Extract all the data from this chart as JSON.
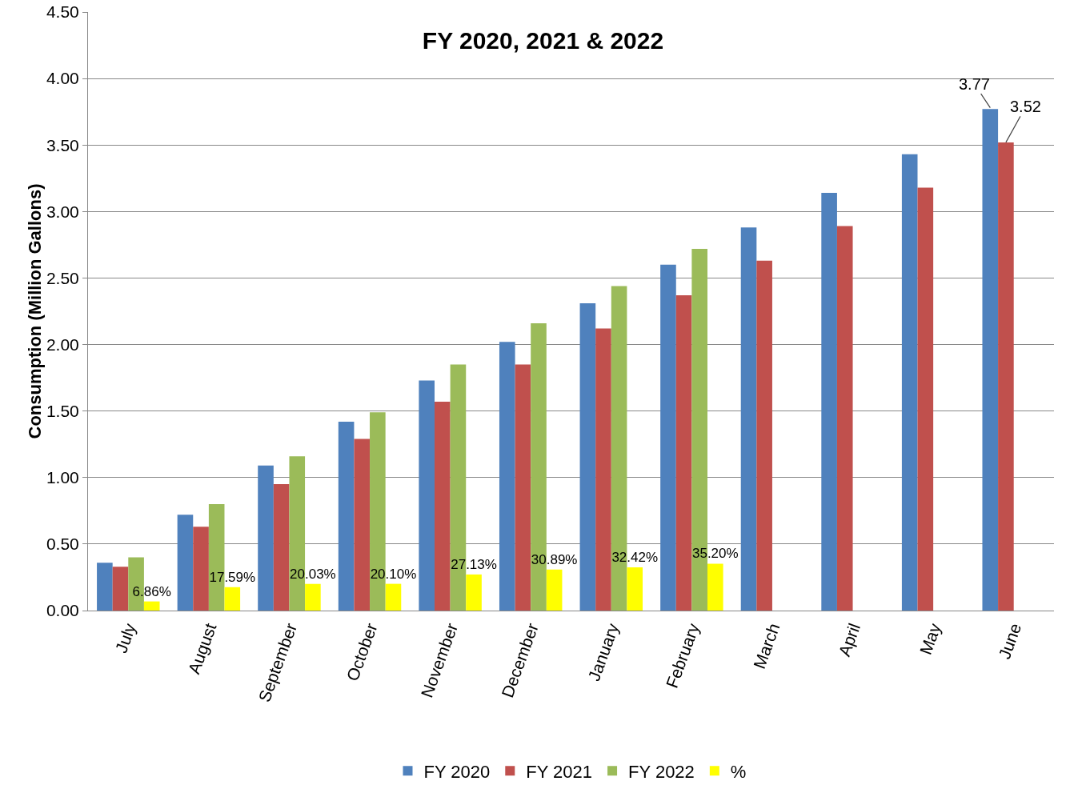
{
  "chart_data": {
    "type": "bar",
    "title": "FY 2020, 2021 & 2022",
    "ylabel": "Consumption (Million Gallons)",
    "categories": [
      "July",
      "August",
      "September",
      "October",
      "November",
      "December",
      "January",
      "February",
      "March",
      "April",
      "May",
      "June"
    ],
    "series": [
      {
        "name": "FY 2020",
        "color": "#4f81bd",
        "values": [
          0.36,
          0.72,
          1.09,
          1.42,
          1.73,
          2.02,
          2.31,
          2.6,
          2.88,
          3.14,
          3.43,
          3.77
        ]
      },
      {
        "name": "FY 2021",
        "color": "#c0504d",
        "values": [
          0.33,
          0.63,
          0.95,
          1.29,
          1.57,
          1.85,
          2.12,
          2.37,
          2.63,
          2.89,
          3.18,
          3.52
        ]
      },
      {
        "name": "FY 2022",
        "color": "#9bbb59",
        "values": [
          0.4,
          0.8,
          1.16,
          1.49,
          1.85,
          2.16,
          2.44,
          2.72,
          null,
          null,
          null,
          null
        ]
      },
      {
        "name": "%",
        "color": "#ffff00",
        "values": [
          0.0686,
          0.1759,
          0.2003,
          0.201,
          0.2713,
          0.3089,
          0.3242,
          0.352,
          null,
          null,
          null,
          null
        ],
        "value_labels": [
          "6.86%",
          "17.59%",
          "20.03%",
          "20.10%",
          "27.13%",
          "30.89%",
          "32.42%",
          "35.20%",
          null,
          null,
          null,
          null
        ]
      }
    ],
    "annotations": [
      "3.77",
      {
        "text": "3.52",
        "x": "June",
        "y": 3.52
      }
    ],
    "ylim": [
      0,
      4.5
    ],
    "yticks": [
      {
        "value": 0,
        "label": "0.00"
      },
      {
        "value": 0.5,
        "label": "0.50"
      },
      {
        "value": 1,
        "label": "1.00"
      },
      {
        "value": 1.5,
        "label": "1.50"
      },
      {
        "value": 2,
        "label": "2.00"
      },
      {
        "value": 2.5,
        "label": "2.50"
      },
      {
        "value": 3,
        "label": "3.00"
      },
      {
        "value": 3.5,
        "label": "3.50"
      },
      {
        "value": 4,
        "label": "4.00"
      },
      {
        "value": 4.5,
        "label": "4.50"
      }
    ],
    "grid": "y",
    "legend": "bottom"
  }
}
